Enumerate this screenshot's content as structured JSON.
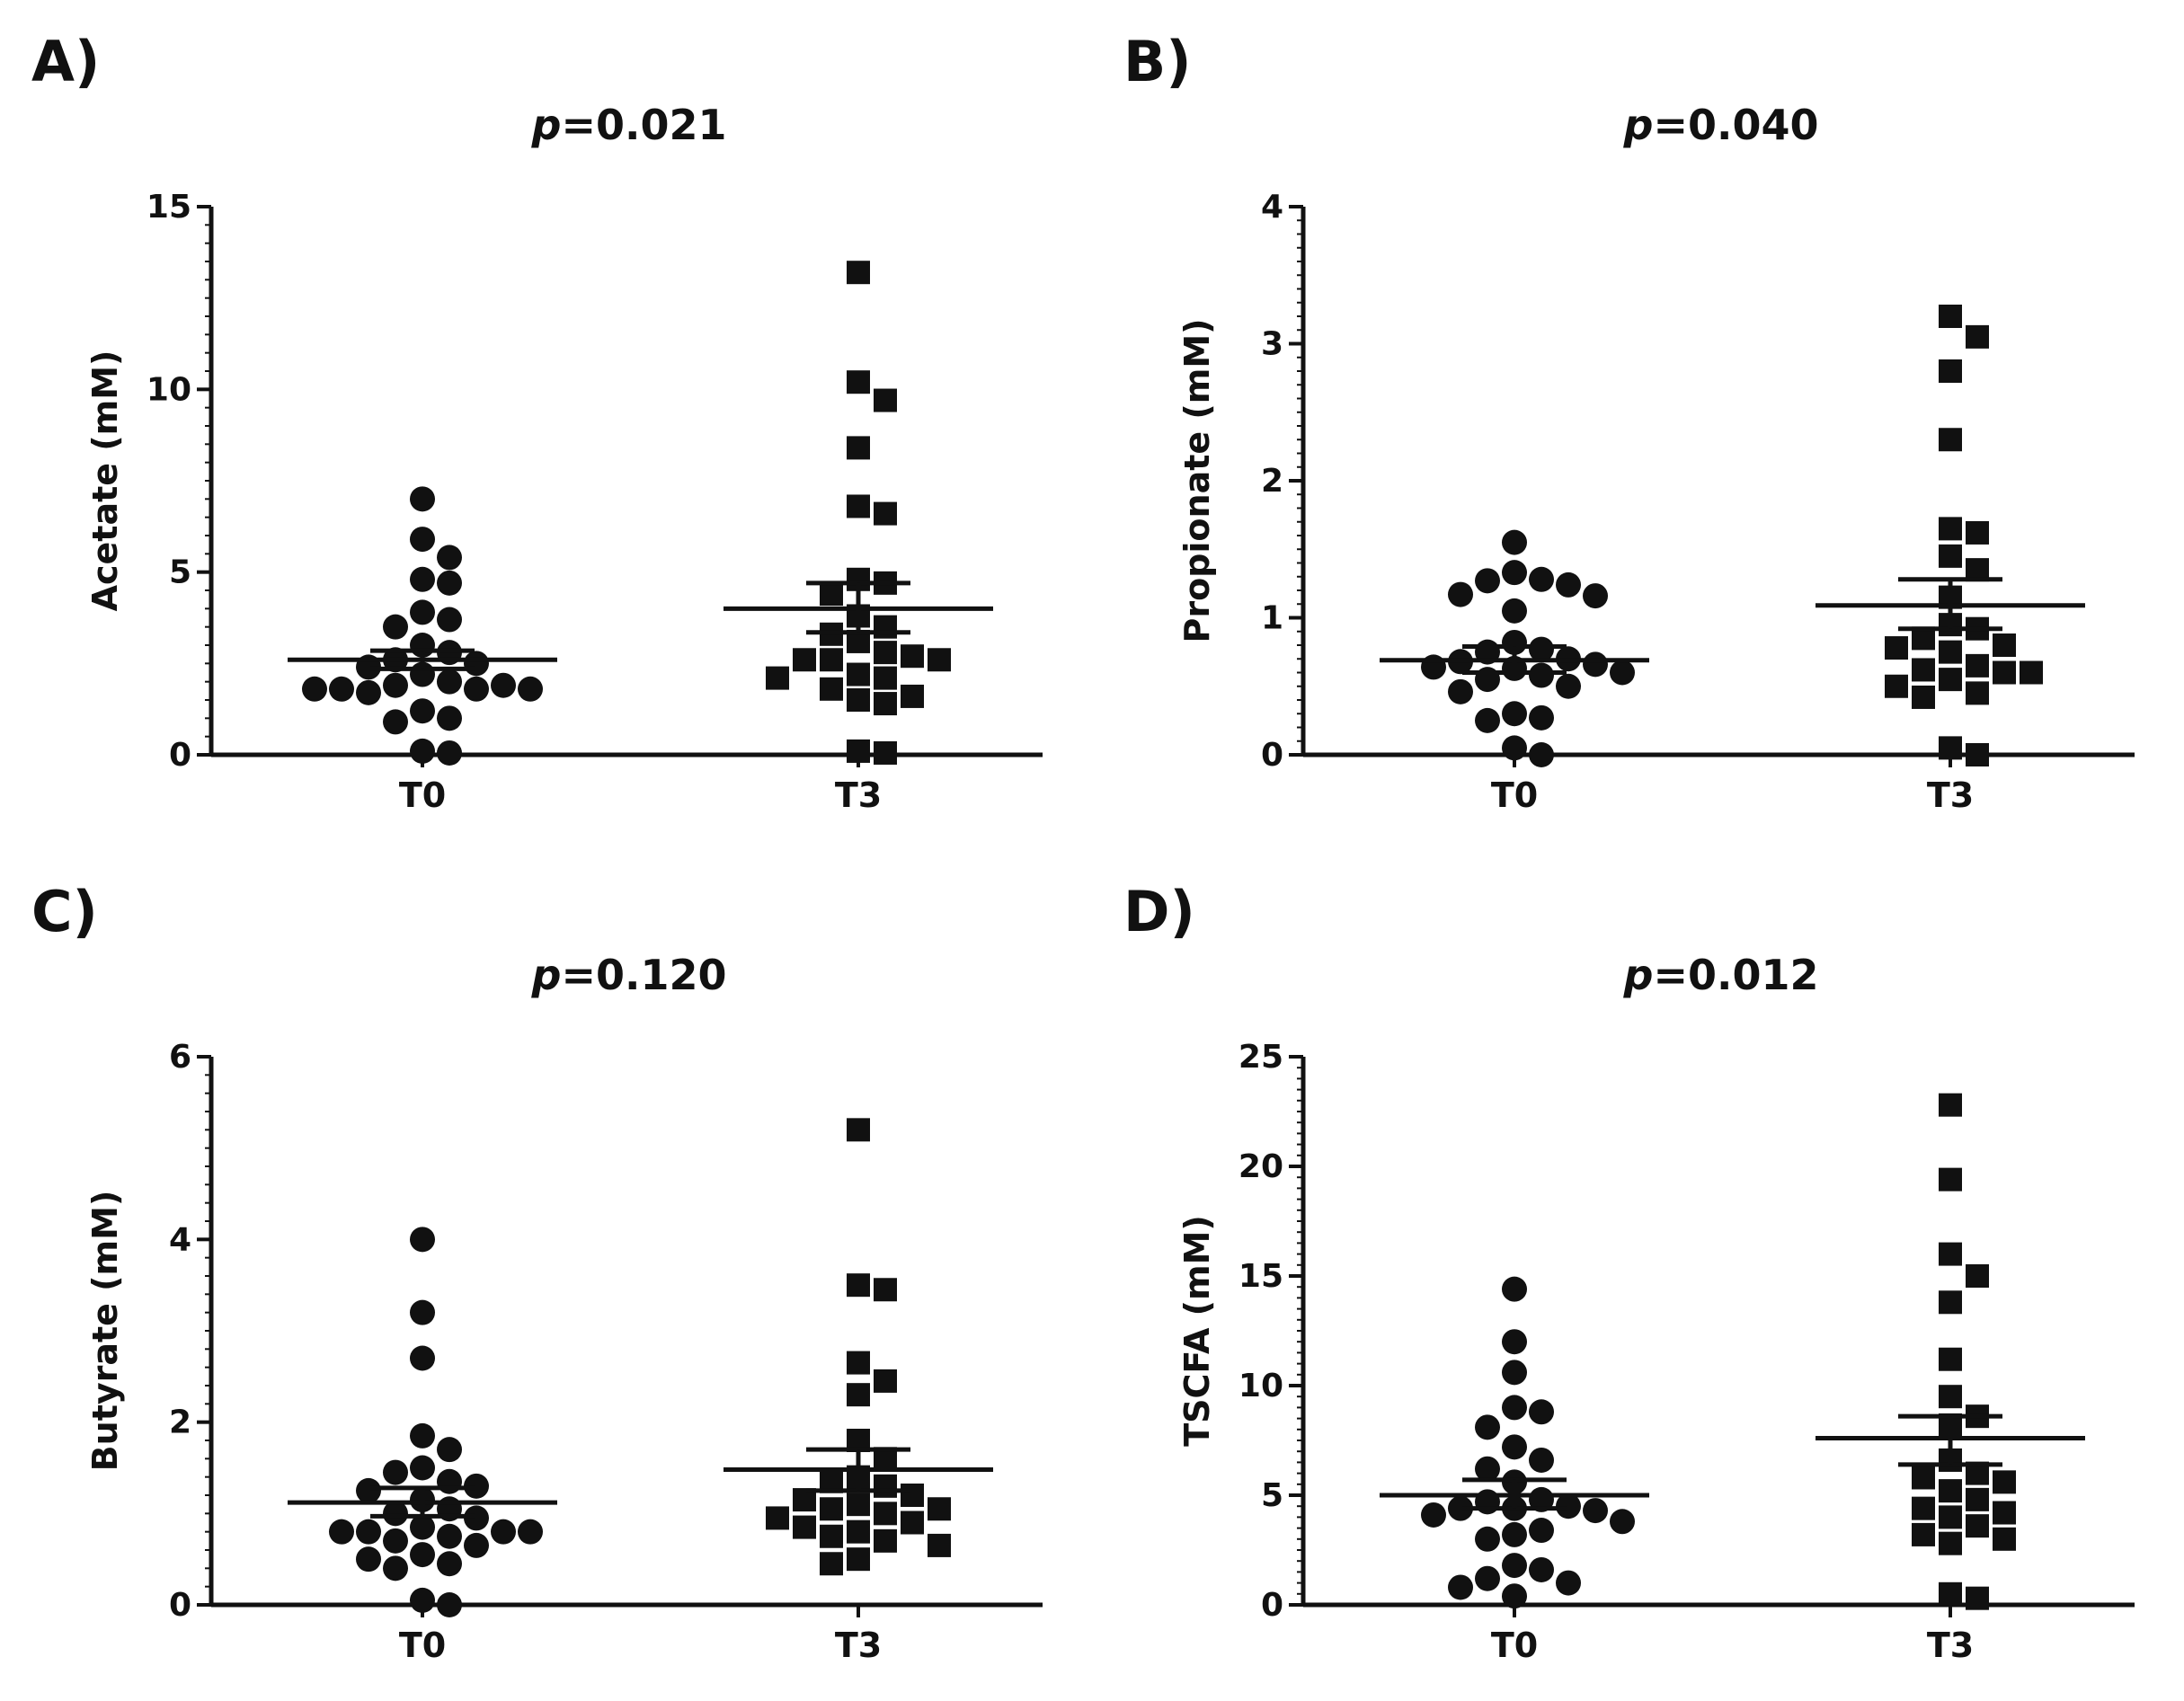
{
  "chart_data": [
    {
      "panel_label": "A)",
      "type": "scatter",
      "title_italic": "p",
      "title_rest": "=0.021",
      "ylabel": "Acetate (mM)",
      "categories": [
        "T0",
        "T3"
      ],
      "ylim": [
        0,
        15
      ],
      "yticks": [
        0,
        5,
        10,
        15
      ],
      "series": [
        {
          "name": "T0",
          "marker": "circle",
          "values": [
            7.0,
            5.9,
            5.4,
            4.8,
            4.7,
            3.9,
            3.7,
            3.5,
            3.0,
            2.8,
            2.6,
            2.5,
            2.4,
            2.2,
            2.0,
            1.9,
            1.9,
            1.8,
            1.8,
            1.8,
            1.8,
            1.7,
            1.2,
            1.0,
            0.9,
            0.1,
            0.05
          ],
          "mean": 2.6,
          "sem_upper": 2.85,
          "sem_lower": 2.35
        },
        {
          "name": "T3",
          "marker": "square",
          "values": [
            13.2,
            10.2,
            9.7,
            8.4,
            6.8,
            6.6,
            4.8,
            4.7,
            4.4,
            3.8,
            3.5,
            3.3,
            3.1,
            2.8,
            2.7,
            2.6,
            2.6,
            2.6,
            2.2,
            2.1,
            2.1,
            1.8,
            1.6,
            1.5,
            1.4,
            0.1,
            0.05
          ],
          "mean": 4.0,
          "sem_upper": 4.7,
          "sem_lower": 3.35
        }
      ]
    },
    {
      "panel_label": "B)",
      "type": "scatter",
      "title_italic": "p",
      "title_rest": "=0.040",
      "ylabel": "Propionate (mM)",
      "categories": [
        "T0",
        "T3"
      ],
      "ylim": [
        0,
        4
      ],
      "yticks": [
        0,
        1,
        2,
        3,
        4
      ],
      "series": [
        {
          "name": "T0",
          "marker": "circle",
          "values": [
            1.55,
            1.33,
            1.28,
            1.27,
            1.24,
            1.17,
            1.16,
            1.05,
            0.82,
            0.77,
            0.75,
            0.7,
            0.68,
            0.66,
            0.64,
            0.63,
            0.6,
            0.58,
            0.55,
            0.5,
            0.46,
            0.3,
            0.27,
            0.25,
            0.05,
            0.0
          ],
          "mean": 0.69,
          "sem_upper": 0.79,
          "sem_lower": 0.6
        },
        {
          "name": "T3",
          "marker": "square",
          "values": [
            3.2,
            3.05,
            2.8,
            2.3,
            1.65,
            1.62,
            1.45,
            1.35,
            1.15,
            0.95,
            0.92,
            0.85,
            0.8,
            0.78,
            0.75,
            0.65,
            0.62,
            0.6,
            0.6,
            0.55,
            0.5,
            0.45,
            0.42,
            0.05,
            0.0
          ],
          "mean": 1.09,
          "sem_upper": 1.28,
          "sem_lower": 0.92
        }
      ]
    },
    {
      "panel_label": "C)",
      "type": "scatter",
      "title_italic": "p",
      "title_rest": "=0.120",
      "ylabel": "Butyrate (mM)",
      "categories": [
        "T0",
        "T3"
      ],
      "ylim": [
        0,
        6
      ],
      "yticks": [
        0,
        2,
        4,
        6
      ],
      "series": [
        {
          "name": "T0",
          "marker": "circle",
          "values": [
            4.0,
            3.2,
            2.7,
            1.85,
            1.7,
            1.5,
            1.45,
            1.35,
            1.3,
            1.25,
            1.15,
            1.05,
            1.0,
            0.95,
            0.85,
            0.8,
            0.8,
            0.8,
            0.8,
            0.75,
            0.7,
            0.65,
            0.55,
            0.5,
            0.45,
            0.4,
            0.05,
            0.0
          ],
          "mean": 1.12,
          "sem_upper": 1.28,
          "sem_lower": 0.97
        },
        {
          "name": "T3",
          "marker": "square",
          "values": [
            5.2,
            3.5,
            3.45,
            2.65,
            2.45,
            2.3,
            1.8,
            1.6,
            1.4,
            1.35,
            1.3,
            1.2,
            1.15,
            1.1,
            1.05,
            1.05,
            1.0,
            0.95,
            0.9,
            0.85,
            0.8,
            0.75,
            0.7,
            0.65,
            0.5,
            0.45
          ],
          "mean": 1.48,
          "sem_upper": 1.7,
          "sem_lower": 1.25
        }
      ]
    },
    {
      "panel_label": "D)",
      "type": "scatter",
      "title_italic": "p",
      "title_rest": "=0.012",
      "ylabel": "TSCFA (mM)",
      "categories": [
        "T0",
        "T3"
      ],
      "ylim": [
        0,
        25
      ],
      "yticks": [
        0,
        5,
        10,
        15,
        20,
        25
      ],
      "series": [
        {
          "name": "T0",
          "marker": "circle",
          "values": [
            14.4,
            12.0,
            10.6,
            9.0,
            8.8,
            8.1,
            7.2,
            6.6,
            6.2,
            5.6,
            4.8,
            4.7,
            4.5,
            4.4,
            4.4,
            4.3,
            4.1,
            3.8,
            3.4,
            3.2,
            3.0,
            1.8,
            1.6,
            1.2,
            1.0,
            0.8,
            0.4
          ],
          "mean": 5.0,
          "sem_upper": 5.7,
          "sem_lower": 4.4
        },
        {
          "name": "T3",
          "marker": "square",
          "values": [
            22.8,
            19.4,
            16.0,
            15.0,
            13.8,
            11.2,
            9.5,
            8.6,
            8.2,
            6.6,
            6.0,
            5.8,
            5.6,
            5.2,
            4.8,
            4.4,
            4.2,
            4.0,
            3.6,
            3.2,
            3.0,
            2.8,
            0.5,
            0.3
          ],
          "mean": 7.6,
          "sem_upper": 8.6,
          "sem_lower": 6.4
        }
      ]
    }
  ]
}
